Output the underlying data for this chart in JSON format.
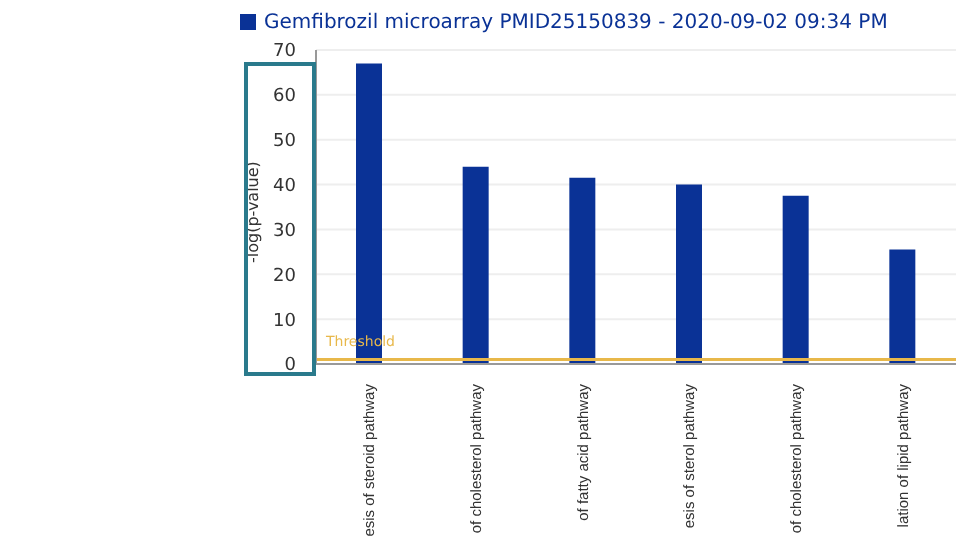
{
  "chart_data": {
    "type": "bar",
    "categories": [
      "esis of steroid pathway",
      "of cholesterol pathway",
      "of fatty acid pathway",
      "esis of sterol pathway",
      "of cholesterol pathway",
      "lation of lipid pathway"
    ],
    "series": [
      {
        "name": "Gemfibrozil microarray PMID25150839 - 2020-09-02 09:34 PM",
        "color": "#0a3296",
        "values": [
          67,
          44,
          41.5,
          40,
          37.5,
          25.5
        ]
      }
    ],
    "ylabel": "-log(p-value)",
    "ylim": [
      0,
      70
    ],
    "yticks": [
      0,
      10,
      20,
      30,
      40,
      50,
      60,
      70
    ],
    "grid": "y",
    "legend": "top left",
    "ref_lines": [
      {
        "axis": "y",
        "value": 1,
        "label": "Threshold",
        "color": "#e8b84a"
      }
    ]
  }
}
